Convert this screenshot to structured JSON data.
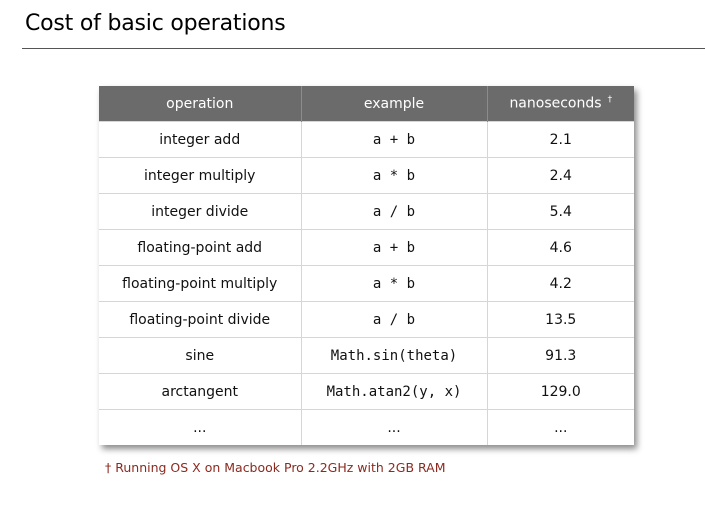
{
  "title": "Cost of basic operations",
  "table": {
    "headers": {
      "operation": "operation",
      "example": "example",
      "nanoseconds": "nanoseconds",
      "nanoseconds_mark": "†"
    },
    "rows": [
      {
        "operation": "integer add",
        "example": "a + b",
        "ns": "2.1"
      },
      {
        "operation": "integer multiply",
        "example": "a * b",
        "ns": "2.4"
      },
      {
        "operation": "integer divide",
        "example": "a / b",
        "ns": "5.4"
      },
      {
        "operation": "floating-point add",
        "example": "a + b",
        "ns": "4.6"
      },
      {
        "operation": "floating-point multiply",
        "example": "a * b",
        "ns": "4.2"
      },
      {
        "operation": "floating-point divide",
        "example": "a / b",
        "ns": "13.5"
      },
      {
        "operation": "sine",
        "example": "Math.sin(theta)",
        "ns": "91.3"
      },
      {
        "operation": "arctangent",
        "example": "Math.atan2(y, x)",
        "ns": "129.0"
      },
      {
        "operation": "...",
        "example": "...",
        "ns": "..."
      }
    ]
  },
  "footnote": "† Running OS X on Macbook Pro 2.2GHz with 2GB RAM",
  "colors": {
    "header_bg": "#6b6b6b",
    "footnote": "#8b2a1f"
  }
}
